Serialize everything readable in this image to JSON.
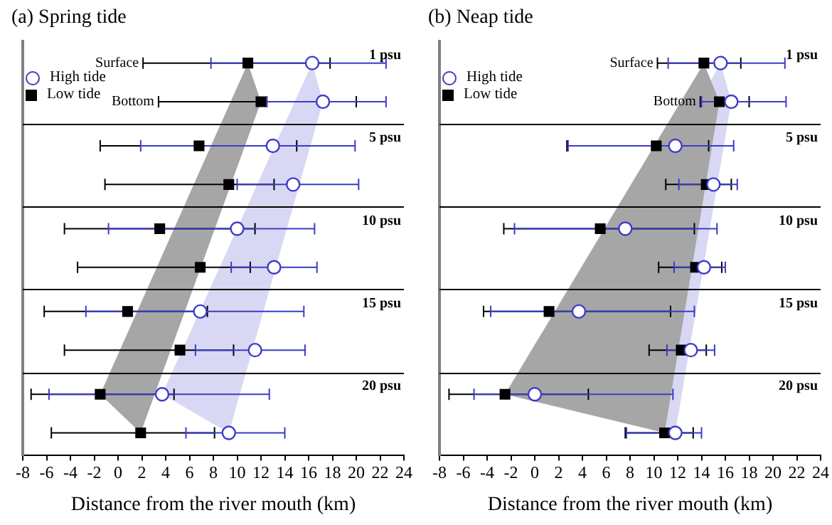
{
  "chart_data": [
    {
      "type": "scatter",
      "title": "(a) Spring tide",
      "xlabel": "Distance from the river mouth (km)",
      "orientation": "horizontal",
      "legend": "top left",
      "categories": [
        "Surface",
        "Bottom",
        null,
        null,
        null,
        null,
        null,
        null,
        null,
        null
      ],
      "xlim": [
        -8,
        24
      ],
      "xticks": [
        -8,
        -6,
        -4,
        -2,
        0,
        2,
        4,
        6,
        8,
        10,
        12,
        14,
        16,
        18,
        20,
        22,
        24
      ],
      "annotations": [
        "1 psu",
        "5 psu",
        "10 psu",
        "15 psu",
        "20 psu"
      ],
      "series": [
        {
          "name": "High tide",
          "color": "#3c3cc8",
          "marker": "circle",
          "values": [
            16.3,
            17.2,
            13,
            14.7,
            10,
            13.1,
            6.9,
            11.5,
            3.7,
            9.3
          ],
          "errors": [
            [
              7.8,
              22.5
            ],
            [
              12.5,
              22.5
            ],
            [
              1.9,
              19.9
            ],
            [
              10,
              20.2
            ],
            [
              -0.8,
              16.5
            ],
            [
              9.5,
              16.7
            ],
            [
              -2.7,
              15.6
            ],
            [
              6.5,
              15.7
            ],
            [
              -5.8,
              12.7
            ],
            [
              5.7,
              14
            ]
          ]
        },
        {
          "name": "Low tide",
          "color": "#000000",
          "marker": "square",
          "values": [
            10.9,
            12,
            6.8,
            9.3,
            3.5,
            6.9,
            0.8,
            5.2,
            -1.5,
            1.9
          ],
          "errors": [
            [
              2.1,
              17.8
            ],
            [
              3.4,
              20
            ],
            [
              -1.5,
              15
            ],
            [
              -1.1,
              13.1
            ],
            [
              -4.5,
              11.5
            ],
            [
              -3.4,
              11.1
            ],
            [
              -6.2,
              7.5
            ],
            [
              -4.5,
              9.7
            ],
            [
              -7.3,
              4.7
            ],
            [
              -5.6,
              8.1
            ]
          ]
        }
      ]
    },
    {
      "type": "scatter",
      "title": "(b) Neap tide",
      "xlabel": "Distance from the river mouth (km)",
      "orientation": "horizontal",
      "legend": "top left",
      "categories": [
        "Surface",
        "Bottom",
        null,
        null,
        null,
        null,
        null,
        null,
        null,
        null
      ],
      "xlim": [
        -8,
        24
      ],
      "xticks": [
        -8,
        -6,
        -4,
        -2,
        0,
        2,
        4,
        6,
        8,
        10,
        12,
        14,
        16,
        18,
        20,
        22,
        24
      ],
      "annotations": [
        "1 psu",
        "5 psu",
        "10 psu",
        "15 psu",
        "20 psu"
      ],
      "series": [
        {
          "name": "High tide",
          "color": "#3c3cc8",
          "marker": "circle",
          "values": [
            15.6,
            16.5,
            11.8,
            15,
            7.6,
            14.2,
            3.7,
            13.1,
            0,
            11.8
          ],
          "errors": [
            [
              11.2,
              21
            ],
            [
              14,
              21.1
            ],
            [
              2.8,
              16.7
            ],
            [
              12.1,
              17
            ],
            [
              -1.7,
              15.3
            ],
            [
              11.7,
              16
            ],
            [
              -3.7,
              13.4
            ],
            [
              11.1,
              15.1
            ],
            [
              -5.1,
              11.6
            ],
            [
              7.7,
              14
            ]
          ]
        },
        {
          "name": "Low tide",
          "color": "#000000",
          "marker": "square",
          "values": [
            14.2,
            15.5,
            10.2,
            14.4,
            5.5,
            13.5,
            1.2,
            12.3,
            -2.5,
            10.9
          ],
          "errors": [
            [
              10.3,
              17.3
            ],
            [
              13.9,
              18
            ],
            [
              2.7,
              14.6
            ],
            [
              11,
              16.5
            ],
            [
              -2.6,
              13.4
            ],
            [
              10.4,
              15.7
            ],
            [
              -4.3,
              11.4
            ],
            [
              9.6,
              14.4
            ],
            [
              -7.2,
              4.5
            ],
            [
              7.6,
              13.3
            ]
          ]
        }
      ]
    }
  ]
}
